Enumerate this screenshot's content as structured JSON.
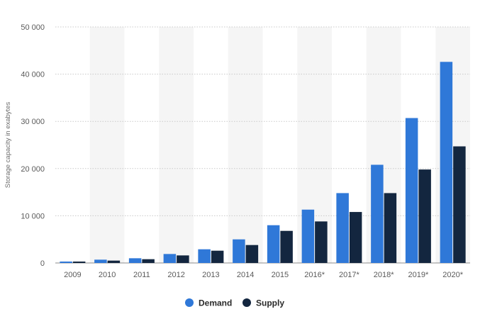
{
  "colors": {
    "demand": "#2f78d8",
    "supply": "#13263f",
    "grid": "#c9c9c9",
    "band": "#f5f5f5",
    "axis": "#8c8c8c"
  },
  "chart_data": {
    "type": "bar",
    "title": "",
    "xlabel": "",
    "ylabel": "Storage capacity in exabytes",
    "ylim": [
      0,
      50000
    ],
    "yticks": [
      {
        "value": 0,
        "label": "0"
      },
      {
        "value": 10000,
        "label": "10 000"
      },
      {
        "value": 20000,
        "label": "20 000"
      },
      {
        "value": 30000,
        "label": "30 000"
      },
      {
        "value": 40000,
        "label": "40 000"
      },
      {
        "value": 50000,
        "label": "50 000"
      }
    ],
    "categories": [
      "2009",
      "2010",
      "2011",
      "2012",
      "2013",
      "2014",
      "2015",
      "2016*",
      "2017*",
      "2018*",
      "2019*",
      "2020*"
    ],
    "series": [
      {
        "name": "Demand",
        "values": [
          300,
          700,
          1000,
          1900,
          2900,
          5000,
          8000,
          11300,
          14800,
          20800,
          30700,
          42600
        ]
      },
      {
        "name": "Supply",
        "values": [
          300,
          500,
          800,
          1600,
          2600,
          3800,
          6800,
          8800,
          10800,
          14800,
          19800,
          24700
        ]
      }
    ],
    "grid": true,
    "legend_position": "bottom-center"
  }
}
